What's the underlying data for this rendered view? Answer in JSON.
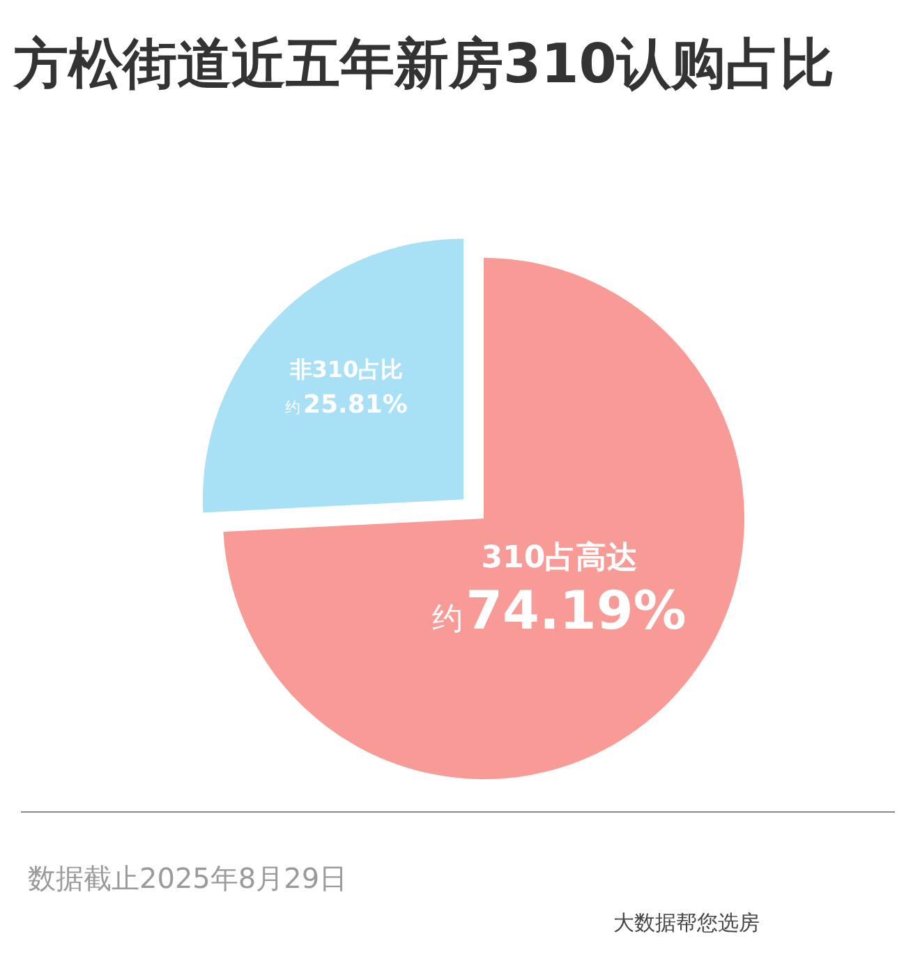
{
  "chart_data": {
    "type": "pie",
    "title": "方松街道近五年新房310认购占比",
    "categories": [
      "310占高达",
      "非310占比"
    ],
    "values": [
      74.19,
      25.81
    ],
    "colors": [
      "#f89a96",
      "#a8e0f5"
    ],
    "value_labels": [
      "约74.19%",
      "约25.81%"
    ],
    "annotations": [
      "数据截止2025年8月29日",
      "大数据帮您选房"
    ]
  }
}
